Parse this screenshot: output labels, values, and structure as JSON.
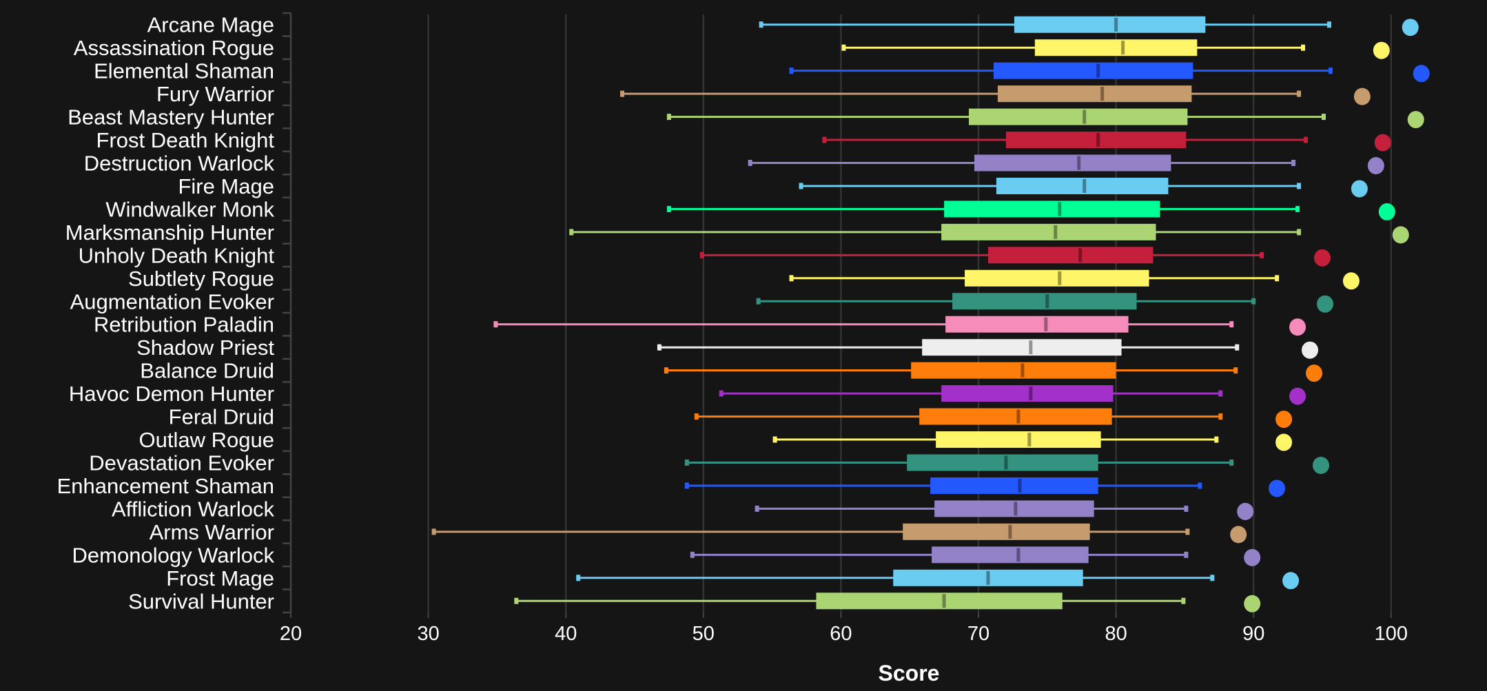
{
  "chart_data": {
    "type": "boxplot",
    "title": "",
    "xlabel": "Score",
    "ylabel": "",
    "xlim": [
      20,
      106
    ],
    "xticks": [
      20,
      30,
      40,
      50,
      60,
      70,
      80,
      90,
      100
    ],
    "grid": "vertical",
    "legend": "none",
    "series": [
      {
        "name": "Arcane Mage",
        "color": "#69CCF0",
        "min": 54.2,
        "q1": 72.6,
        "median": 80.0,
        "q3": 86.5,
        "max": 95.5,
        "point": 101.4
      },
      {
        "name": "Assassination Rogue",
        "color": "#FFF569",
        "min": 60.2,
        "q1": 74.1,
        "median": 80.5,
        "q3": 85.9,
        "max": 93.6,
        "point": 99.3
      },
      {
        "name": "Elemental Shaman",
        "color": "#2459FF",
        "min": 56.4,
        "q1": 71.1,
        "median": 78.7,
        "q3": 85.6,
        "max": 95.6,
        "point": 102.2
      },
      {
        "name": "Fury Warrior",
        "color": "#C69B6D",
        "min": 44.1,
        "q1": 71.4,
        "median": 79.0,
        "q3": 85.5,
        "max": 93.3,
        "point": 97.9
      },
      {
        "name": "Beast Mastery Hunter",
        "color": "#ABD473",
        "min": 47.5,
        "q1": 69.3,
        "median": 77.7,
        "q3": 85.2,
        "max": 95.1,
        "point": 101.8
      },
      {
        "name": "Frost Death Knight",
        "color": "#C41F3B",
        "min": 58.8,
        "q1": 72.0,
        "median": 78.7,
        "q3": 85.1,
        "max": 93.8,
        "point": 99.4
      },
      {
        "name": "Destruction Warlock",
        "color": "#9482C9",
        "min": 53.4,
        "q1": 69.7,
        "median": 77.3,
        "q3": 84.0,
        "max": 92.9,
        "point": 98.9
      },
      {
        "name": "Fire Mage",
        "color": "#69CCF0",
        "min": 57.1,
        "q1": 71.3,
        "median": 77.7,
        "q3": 83.8,
        "max": 93.3,
        "point": 97.7
      },
      {
        "name": "Windwalker Monk",
        "color": "#00FF96",
        "min": 47.5,
        "q1": 67.5,
        "median": 75.9,
        "q3": 83.2,
        "max": 93.2,
        "point": 99.7
      },
      {
        "name": "Marksmanship Hunter",
        "color": "#ABD473",
        "min": 40.4,
        "q1": 67.3,
        "median": 75.6,
        "q3": 82.9,
        "max": 93.3,
        "point": 100.7
      },
      {
        "name": "Unholy Death Knight",
        "color": "#C41F3B",
        "min": 49.9,
        "q1": 70.7,
        "median": 77.4,
        "q3": 82.7,
        "max": 90.6,
        "point": 95.0
      },
      {
        "name": "Subtlety Rogue",
        "color": "#FFF569",
        "min": 56.4,
        "q1": 69.0,
        "median": 75.9,
        "q3": 82.4,
        "max": 91.7,
        "point": 97.1
      },
      {
        "name": "Augmentation Evoker",
        "color": "#33937F",
        "min": 54.0,
        "q1": 68.1,
        "median": 75.0,
        "q3": 81.5,
        "max": 90.0,
        "point": 95.2
      },
      {
        "name": "Retribution Paladin",
        "color": "#F58CBA",
        "min": 34.9,
        "q1": 67.6,
        "median": 74.9,
        "q3": 80.9,
        "max": 88.4,
        "point": 93.2
      },
      {
        "name": "Shadow Priest",
        "color": "#EEEEEE",
        "min": 46.8,
        "q1": 65.9,
        "median": 73.8,
        "q3": 80.4,
        "max": 88.8,
        "point": 94.1
      },
      {
        "name": "Balance Druid",
        "color": "#FF7D0A",
        "min": 47.3,
        "q1": 65.1,
        "median": 73.2,
        "q3": 80.0,
        "max": 88.7,
        "point": 94.4
      },
      {
        "name": "Havoc Demon Hunter",
        "color": "#A330C9",
        "min": 51.3,
        "q1": 67.3,
        "median": 73.8,
        "q3": 79.8,
        "max": 87.6,
        "point": 93.2
      },
      {
        "name": "Feral Druid",
        "color": "#FF7D0A",
        "min": 49.5,
        "q1": 65.7,
        "median": 72.9,
        "q3": 79.7,
        "max": 87.6,
        "point": 92.2
      },
      {
        "name": "Outlaw Rogue",
        "color": "#FFF569",
        "min": 55.2,
        "q1": 66.9,
        "median": 73.7,
        "q3": 78.9,
        "max": 87.3,
        "point": 92.2
      },
      {
        "name": "Devastation Evoker",
        "color": "#33937F",
        "min": 48.8,
        "q1": 64.8,
        "median": 72.0,
        "q3": 78.7,
        "max": 88.4,
        "point": 94.9
      },
      {
        "name": "Enhancement Shaman",
        "color": "#2459FF",
        "min": 48.8,
        "q1": 66.5,
        "median": 73.0,
        "q3": 78.7,
        "max": 86.1,
        "point": 91.7
      },
      {
        "name": "Affliction Warlock",
        "color": "#9482C9",
        "min": 53.9,
        "q1": 66.8,
        "median": 72.7,
        "q3": 78.4,
        "max": 85.1,
        "point": 89.4
      },
      {
        "name": "Arms Warrior",
        "color": "#C69B6D",
        "min": 30.4,
        "q1": 64.5,
        "median": 72.3,
        "q3": 78.1,
        "max": 85.2,
        "point": 88.9
      },
      {
        "name": "Demonology Warlock",
        "color": "#9482C9",
        "min": 49.2,
        "q1": 66.6,
        "median": 72.9,
        "q3": 78.0,
        "max": 85.1,
        "point": 89.9
      },
      {
        "name": "Frost Mage",
        "color": "#69CCF0",
        "min": 40.9,
        "q1": 63.8,
        "median": 70.7,
        "q3": 77.6,
        "max": 87.0,
        "point": 92.7
      },
      {
        "name": "Survival Hunter",
        "color": "#ABD473",
        "min": 36.4,
        "q1": 58.2,
        "median": 67.5,
        "q3": 76.1,
        "max": 84.9,
        "point": 89.9
      }
    ]
  },
  "theme": {
    "background": "#151515",
    "grid": "#333333",
    "axis": "#444444",
    "text": "#FFFFFF"
  }
}
